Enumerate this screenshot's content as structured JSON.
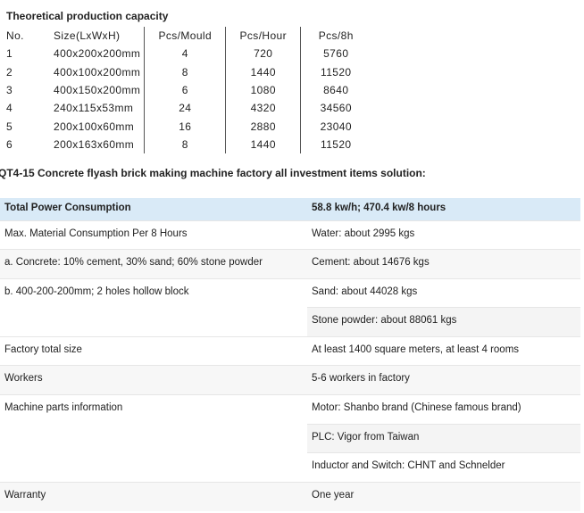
{
  "capacity": {
    "title": "Theoretical production capacity",
    "headers": [
      "No.",
      "Size(LxWxH)",
      "Pcs/Mould",
      "Pcs/Hour",
      "Pcs/8h"
    ],
    "rows": [
      [
        "1",
        "400x200x200mm",
        "4",
        "720",
        "5760"
      ],
      [
        "2",
        "400x100x200mm",
        "8",
        "1440",
        "11520"
      ],
      [
        "3",
        "400x150x200mm",
        "6",
        "1080",
        "8640"
      ],
      [
        "4",
        "240x115x53mm",
        "24",
        "4320",
        "34560"
      ],
      [
        "5",
        "200x100x60mm",
        "16",
        "2880",
        "23040"
      ],
      [
        "6",
        "200x163x60mm",
        "8",
        "1440",
        "11520"
      ]
    ]
  },
  "investment": {
    "title": "QT4-15 Concrete flyash brick making machine factory all investment items solution:",
    "header": {
      "label": "Total Power Consumption",
      "value": "58.8 kw/h; 470.4 kw/8 hours"
    },
    "rows": {
      "max_label": "Max. Material Consumption Per 8 Hours",
      "water": "Water: about 2995 kgs",
      "concrete_label": "a. Concrete: 10% cement, 30% sand; 60% stone powder",
      "cement": "Cement: about 14676 kgs",
      "block_label": "b. 400-200-200mm; 2 holes hollow block",
      "sand": "Sand: about 44028 kgs",
      "stone": "Stone powder: about 88061 kgs",
      "factory_label": "Factory total size",
      "factory_value": "At least 1400 square meters, at least 4 rooms",
      "workers_label": "Workers",
      "workers_value": "5-6 workers in factory",
      "parts_label": "Machine parts information",
      "motor": "Motor: Shanbo brand (Chinese famous brand)",
      "plc": "PLC: Vigor from Taiwan",
      "inductor": "Inductor and Switch: CHNT and Schnelder",
      "warranty_label": "Warranty",
      "warranty_value": "One year"
    },
    "header_color": "#d9eaf7"
  }
}
